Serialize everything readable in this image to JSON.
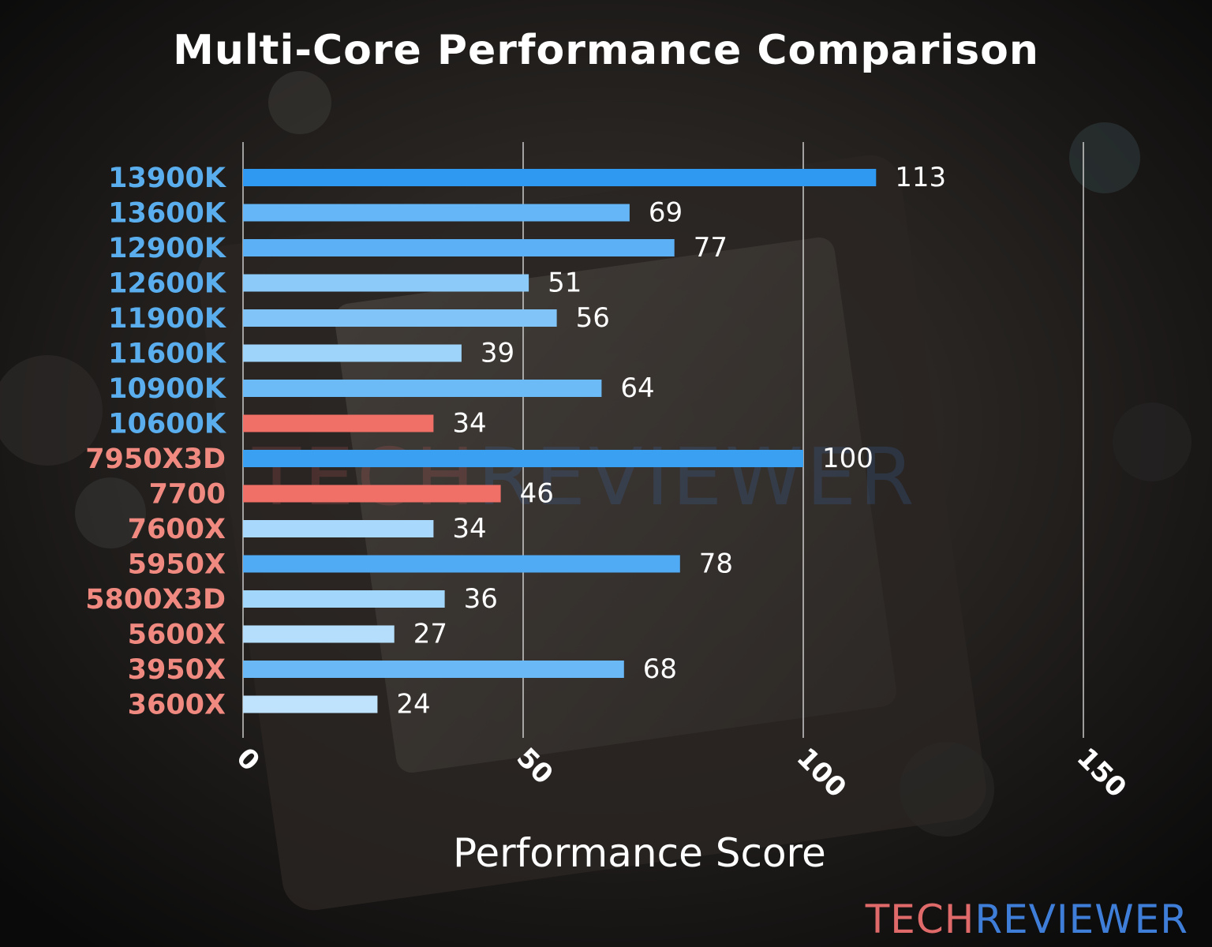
{
  "chart_data": {
    "type": "bar",
    "orientation": "horizontal",
    "title": "Multi-Core Performance Comparison",
    "xlabel": "Performance Score",
    "ylabel": "",
    "xlim": [
      0,
      150
    ],
    "xticks": [
      0,
      50,
      100,
      150
    ],
    "grid": "vertical",
    "categories": [
      "13900K",
      "13600K",
      "12900K",
      "12600K",
      "11900K",
      "11600K",
      "10900K",
      "10600K",
      "7950X3D",
      "7700",
      "7600X",
      "5950X",
      "5800X3D",
      "5600X",
      "3950X",
      "3600X"
    ],
    "values": [
      113,
      69,
      77,
      51,
      56,
      39,
      64,
      34,
      100,
      46,
      34,
      78,
      36,
      27,
      68,
      24
    ],
    "category_colors": [
      "#5aaeee",
      "#5aaeee",
      "#5aaeee",
      "#5aaeee",
      "#5aaeee",
      "#5aaeee",
      "#5aaeee",
      "#5aaeee",
      "#f08a80",
      "#f08a80",
      "#f08a80",
      "#f08a80",
      "#f08a80",
      "#f08a80",
      "#f08a80",
      "#f08a80"
    ],
    "bar_colors": [
      "#2f98f0",
      "#64b6f6",
      "#5cb0f6",
      "#8ccbf9",
      "#80c4f8",
      "#9ed4fa",
      "#6cbaf6",
      "#f07068",
      "#3aa0f2",
      "#f07068",
      "#a8d8fb",
      "#50aaf4",
      "#a2d6fa",
      "#b4defb",
      "#6ab8f6",
      "#bfe3fc"
    ]
  },
  "watermark": {
    "part1": "TECH",
    "part2": "REVIEWER"
  },
  "logo": {
    "part1": "TECH",
    "part2": "REVIEWER"
  }
}
